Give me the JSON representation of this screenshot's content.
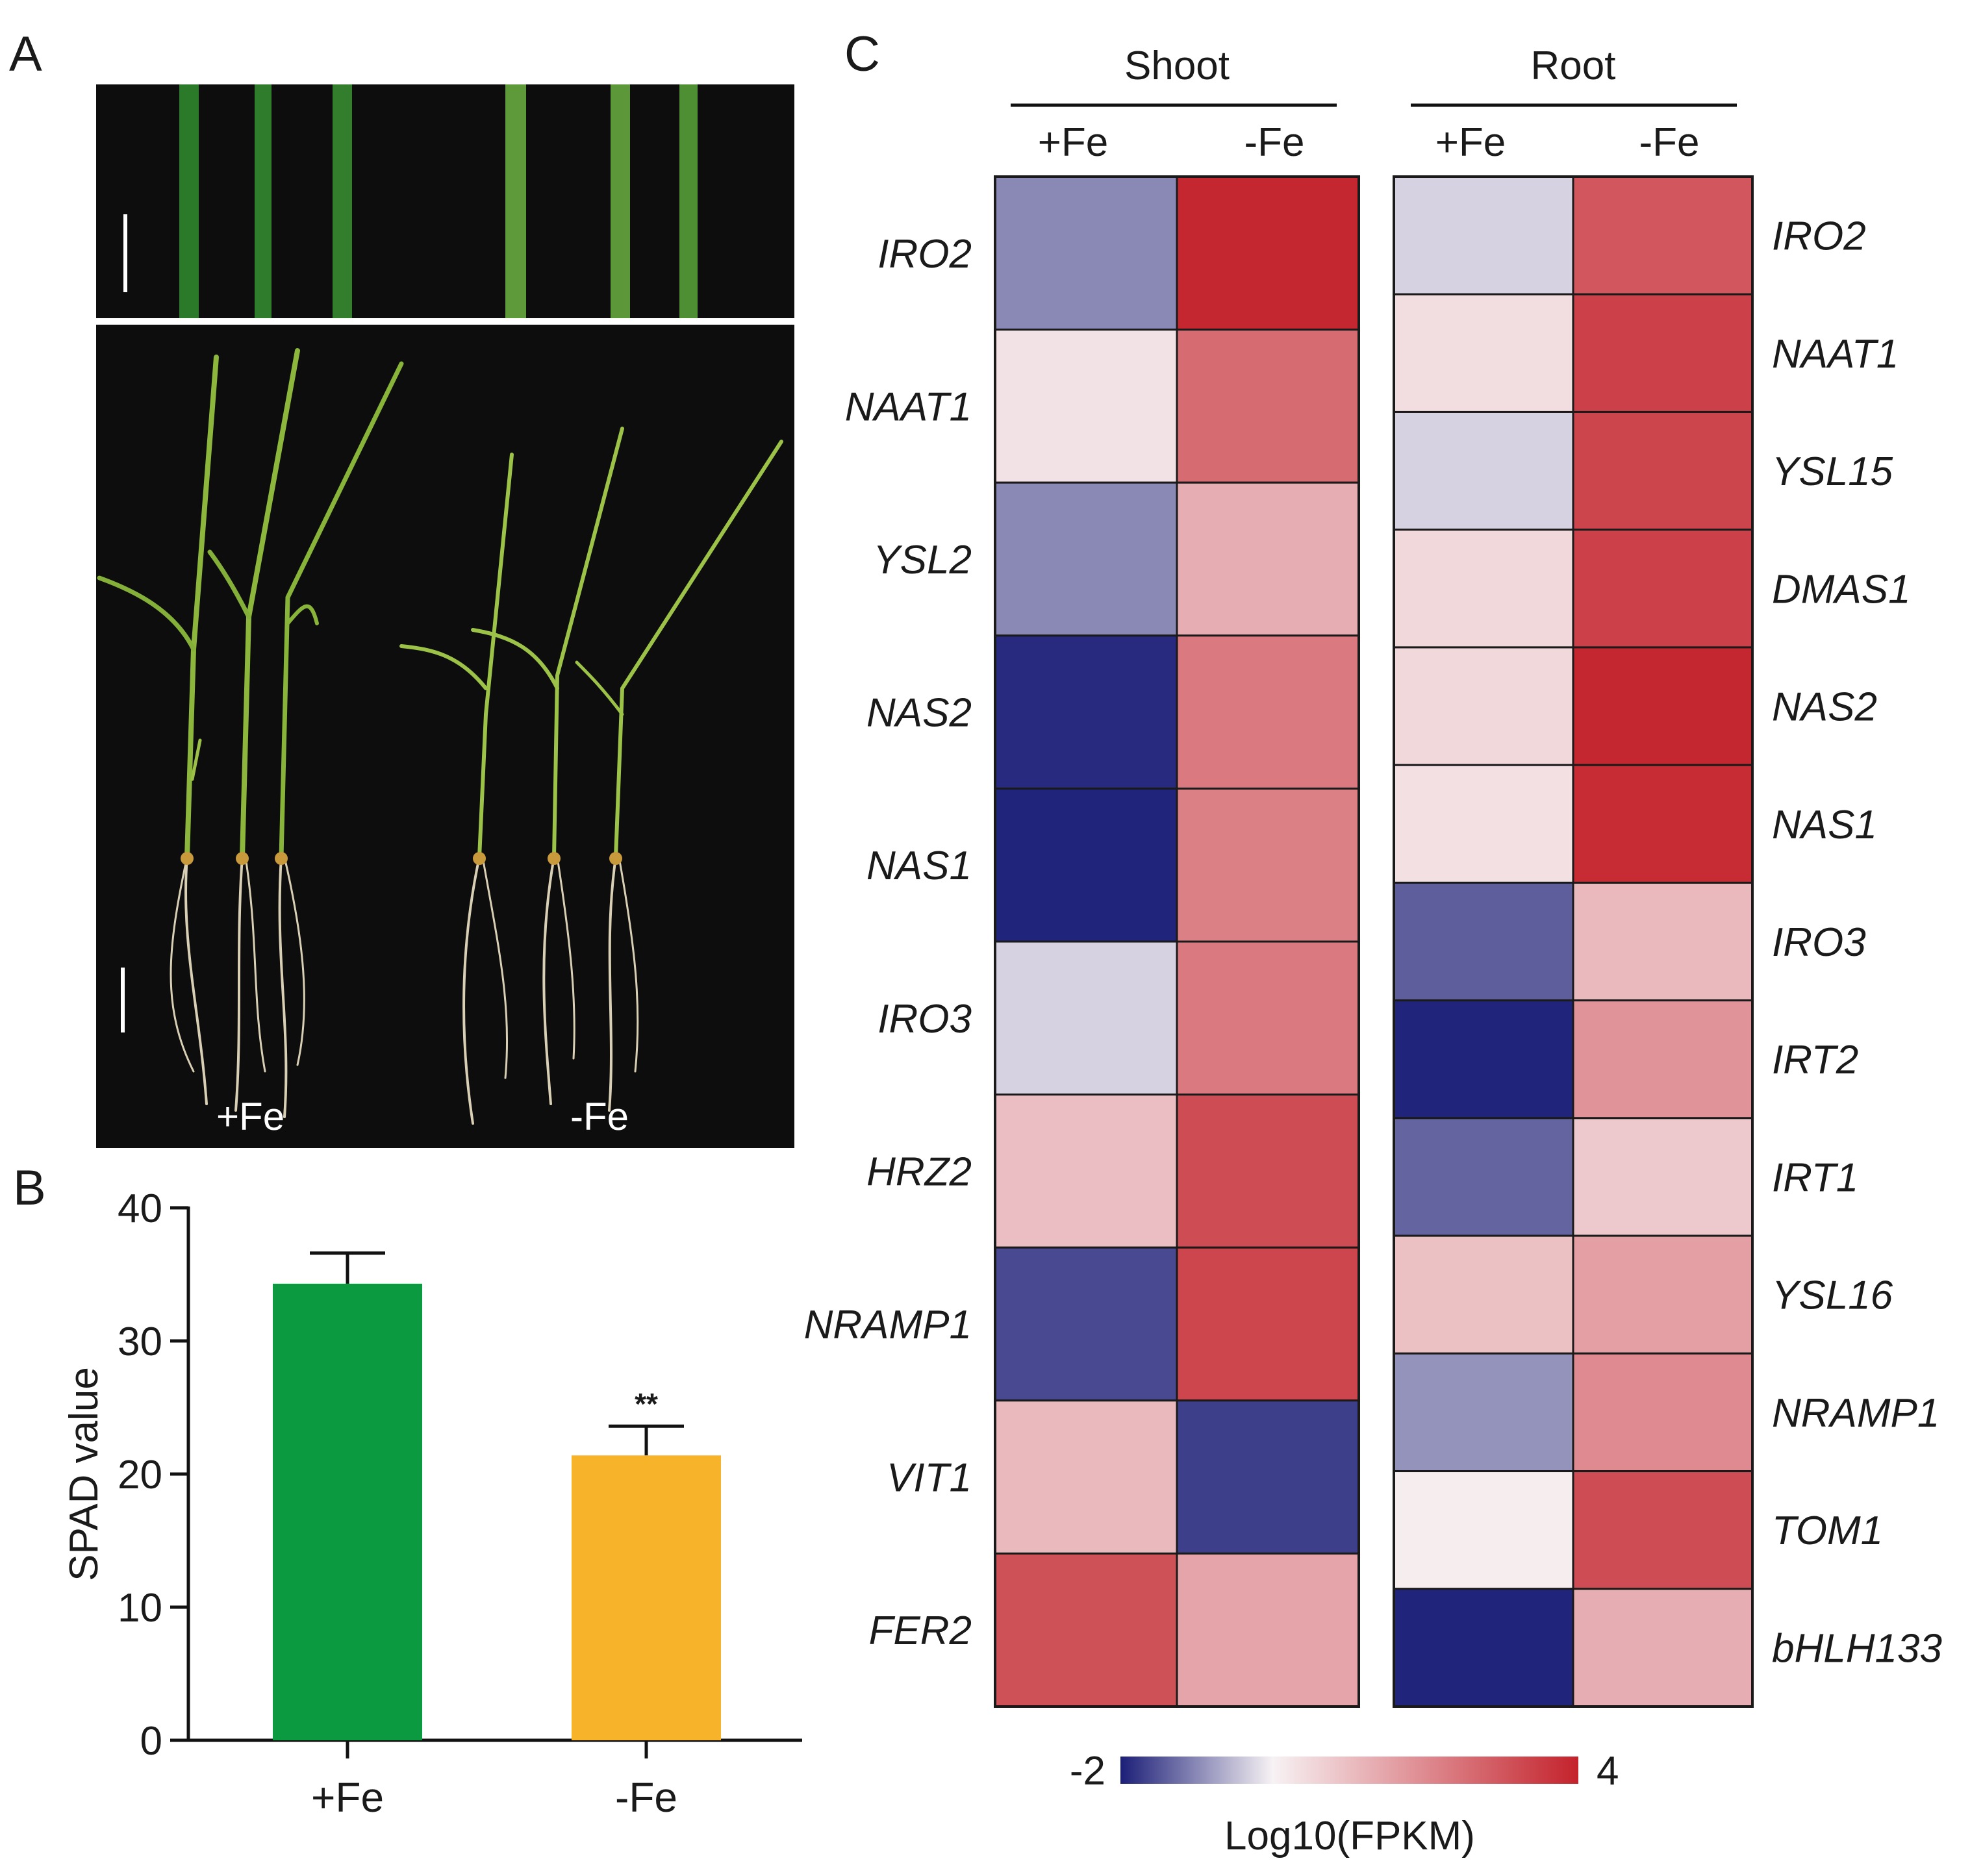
{
  "panels": {
    "a": "A",
    "b": "B",
    "c": "C"
  },
  "photo": {
    "label_plus": "+Fe",
    "label_minus": "-Fe"
  },
  "chart_data": [
    {
      "type": "bar",
      "categories": [
        "+Fe",
        "-Fe"
      ],
      "values": [
        34.3,
        21.4
      ],
      "errors": [
        2.3,
        2.2
      ],
      "significance": [
        "",
        "**"
      ],
      "colors": [
        "#0b9a3f",
        "#f7b42a"
      ],
      "ylabel": "SPAD value",
      "yticks": [
        "0",
        "10",
        "20",
        "30",
        "40"
      ],
      "ylim": [
        0,
        40
      ]
    },
    {
      "type": "heatmap",
      "scale_min": -2,
      "scale_max": 4,
      "colorbar_label": "Log10(FPKM)",
      "colorbar_ticks": [
        "-2",
        "4"
      ],
      "panels": [
        {
          "title": "Shoot",
          "columns": [
            "+Fe",
            "-Fe"
          ],
          "genes": [
            "IRO2",
            "NAAT1",
            "YSL2",
            "NAS2",
            "NAS1",
            "IRO3",
            "HRZ2",
            "NRAMP1",
            "VIT1",
            "FER2"
          ],
          "values": [
            [
              -1.0,
              3.9
            ],
            [
              0.3,
              2.6
            ],
            [
              -1.0,
              1.3
            ],
            [
              -1.9,
              2.3
            ],
            [
              -1.95,
              2.2
            ],
            [
              -0.3,
              2.3
            ],
            [
              1.0,
              3.2
            ],
            [
              -1.6,
              3.3
            ],
            [
              1.1,
              -1.7
            ],
            [
              3.1,
              1.5
            ]
          ]
        },
        {
          "title": "Root",
          "columns": [
            "+Fe",
            "-Fe"
          ],
          "genes": [
            "IRO2",
            "NAAT1",
            "YSL15",
            "DMAS1",
            "NAS2",
            "NAS1",
            "IRO3",
            "IRT2",
            "IRT1",
            "YSL16",
            "NRAMP1",
            "TOM1",
            "bHLH133"
          ],
          "values": [
            [
              -0.3,
              3.0
            ],
            [
              0.4,
              3.4
            ],
            [
              -0.3,
              3.35
            ],
            [
              0.5,
              3.4
            ],
            [
              0.5,
              3.9
            ],
            [
              0.35,
              3.8
            ],
            [
              -1.4,
              1.1
            ],
            [
              -1.95,
              1.8
            ],
            [
              -1.35,
              0.8
            ],
            [
              0.95,
              1.6
            ],
            [
              -0.9,
              2.0
            ],
            [
              0.1,
              3.2
            ],
            [
              -1.95,
              1.3
            ]
          ]
        }
      ]
    }
  ]
}
